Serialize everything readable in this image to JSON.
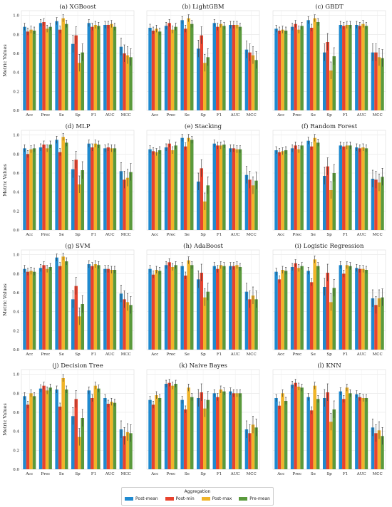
{
  "chart_data": {
    "type": "bar",
    "ylabel": "Metric Values",
    "yticks": [
      "0.0",
      "0.2",
      "0.4",
      "0.6",
      "0.8",
      "1.0"
    ],
    "ylim": [
      0,
      1.05
    ],
    "grid": true,
    "legend": {
      "title": "Aggregation",
      "placement": "bottom-center",
      "entries": [
        "Post-mean",
        "Post-min",
        "Post-max",
        "Pre-mean"
      ]
    },
    "categories": [
      "Acc",
      "Prec",
      "Se",
      "Sp",
      "F1",
      "AUC",
      "MCC"
    ],
    "colors": [
      "#1f8ad0",
      "#e8432e",
      "#f0b429",
      "#5a9a3c"
    ],
    "panels": [
      {
        "title": "(a) XGBoost",
        "series": [
          {
            "name": "Post-mean",
            "values": [
              0.88,
              0.92,
              0.94,
              0.7,
              0.92,
              0.9,
              0.67
            ]
          },
          {
            "name": "Post-min",
            "values": [
              0.83,
              0.93,
              0.85,
              0.79,
              0.88,
              0.9,
              0.6
            ]
          },
          {
            "name": "Post-max",
            "values": [
              0.85,
              0.86,
              0.97,
              0.5,
              0.9,
              0.91,
              0.58
            ]
          },
          {
            "name": "Pre-mean",
            "values": [
              0.84,
              0.88,
              0.91,
              0.61,
              0.89,
              0.88,
              0.56
            ]
          }
        ]
      },
      {
        "title": "(b) LightGBM",
        "series": [
          {
            "name": "Post-mean",
            "values": [
              0.87,
              0.89,
              0.95,
              0.65,
              0.92,
              0.9,
              0.64
            ]
          },
          {
            "name": "Post-min",
            "values": [
              0.84,
              0.92,
              0.86,
              0.79,
              0.88,
              0.9,
              0.61
            ]
          },
          {
            "name": "Post-max",
            "values": [
              0.86,
              0.85,
              0.97,
              0.5,
              0.91,
              0.9,
              0.58
            ]
          },
          {
            "name": "Pre-mean",
            "values": [
              0.83,
              0.88,
              0.91,
              0.56,
              0.89,
              0.88,
              0.53
            ]
          }
        ]
      },
      {
        "title": "(c) GBDT",
        "series": [
          {
            "name": "Post-mean",
            "values": [
              0.86,
              0.88,
              0.95,
              0.61,
              0.9,
              0.9,
              0.61
            ]
          },
          {
            "name": "Post-min",
            "values": [
              0.84,
              0.91,
              0.87,
              0.72,
              0.89,
              0.89,
              0.61
            ]
          },
          {
            "name": "Post-max",
            "values": [
              0.85,
              0.85,
              0.97,
              0.42,
              0.9,
              0.91,
              0.56
            ]
          },
          {
            "name": "Pre-mean",
            "values": [
              0.84,
              0.89,
              0.93,
              0.57,
              0.9,
              0.89,
              0.55
            ]
          }
        ]
      },
      {
        "title": "(d) MLP",
        "series": [
          {
            "name": "Post-mean",
            "values": [
              0.86,
              0.87,
              0.95,
              0.64,
              0.91,
              0.86,
              0.62
            ]
          },
          {
            "name": "Post-min",
            "values": [
              0.8,
              0.9,
              0.82,
              0.74,
              0.87,
              0.87,
              0.53
            ]
          },
          {
            "name": "Post-max",
            "values": [
              0.85,
              0.86,
              0.98,
              0.48,
              0.91,
              0.86,
              0.55
            ]
          },
          {
            "name": "Pre-mean",
            "values": [
              0.86,
              0.9,
              0.92,
              0.63,
              0.9,
              0.86,
              0.61
            ]
          }
        ]
      },
      {
        "title": "(e) Stacking",
        "series": [
          {
            "name": "Post-mean",
            "values": [
              0.85,
              0.87,
              0.97,
              0.51,
              0.91,
              0.86,
              0.58
            ]
          },
          {
            "name": "Post-min",
            "values": [
              0.83,
              0.91,
              0.88,
              0.65,
              0.89,
              0.86,
              0.53
            ]
          },
          {
            "name": "Post-max",
            "values": [
              0.82,
              0.84,
              0.97,
              0.3,
              0.89,
              0.85,
              0.47
            ]
          },
          {
            "name": "Pre-mean",
            "values": [
              0.84,
              0.89,
              0.95,
              0.47,
              0.9,
              0.85,
              0.52
            ]
          }
        ]
      },
      {
        "title": "(f) Random Forest",
        "series": [
          {
            "name": "Post-mean",
            "values": [
              0.84,
              0.86,
              0.94,
              0.57,
              0.89,
              0.87,
              0.54
            ]
          },
          {
            "name": "Post-min",
            "values": [
              0.82,
              0.89,
              0.88,
              0.67,
              0.88,
              0.86,
              0.53
            ]
          },
          {
            "name": "Post-max",
            "values": [
              0.83,
              0.85,
              0.97,
              0.42,
              0.89,
              0.87,
              0.5
            ]
          },
          {
            "name": "Pre-mean",
            "values": [
              0.84,
              0.89,
              0.92,
              0.6,
              0.89,
              0.86,
              0.56
            ]
          }
        ]
      },
      {
        "title": "(g) SVM",
        "series": [
          {
            "name": "Post-mean",
            "values": [
              0.85,
              0.86,
              0.97,
              0.53,
              0.9,
              0.85,
              0.59
            ]
          },
          {
            "name": "Post-min",
            "values": [
              0.82,
              0.89,
              0.88,
              0.67,
              0.88,
              0.85,
              0.53
            ]
          },
          {
            "name": "Post-max",
            "values": [
              0.83,
              0.85,
              0.98,
              0.35,
              0.9,
              0.84,
              0.5
            ]
          },
          {
            "name": "Pre-mean",
            "values": [
              0.82,
              0.87,
              0.93,
              0.48,
              0.89,
              0.84,
              0.47
            ]
          }
        ]
      },
      {
        "title": "(h) AdaBoost",
        "series": [
          {
            "name": "Post-mean",
            "values": [
              0.85,
              0.89,
              0.88,
              0.74,
              0.88,
              0.88,
              0.61
            ]
          },
          {
            "name": "Post-min",
            "values": [
              0.79,
              0.92,
              0.78,
              0.81,
              0.85,
              0.88,
              0.53
            ]
          },
          {
            "name": "Post-max",
            "values": [
              0.84,
              0.87,
              0.94,
              0.55,
              0.89,
              0.89,
              0.57
            ]
          },
          {
            "name": "Pre-mean",
            "values": [
              0.83,
              0.89,
              0.89,
              0.61,
              0.88,
              0.87,
              0.53
            ]
          }
        ]
      },
      {
        "title": "(i) Logistic Regression",
        "series": [
          {
            "name": "Post-mean",
            "values": [
              0.82,
              0.87,
              0.83,
              0.66,
              0.89,
              0.86,
              0.54
            ]
          },
          {
            "name": "Post-min",
            "values": [
              0.74,
              0.91,
              0.71,
              0.81,
              0.8,
              0.85,
              0.47
            ]
          },
          {
            "name": "Post-max",
            "values": [
              0.84,
              0.86,
              0.95,
              0.5,
              0.89,
              0.85,
              0.54
            ]
          },
          {
            "name": "Pre-mean",
            "values": [
              0.83,
              0.88,
              0.88,
              0.65,
              0.88,
              0.84,
              0.55
            ]
          }
        ]
      },
      {
        "title": "(j) Decision Tree",
        "series": [
          {
            "name": "Post-mean",
            "values": [
              0.77,
              0.85,
              0.84,
              0.56,
              0.83,
              0.75,
              0.42
            ]
          },
          {
            "name": "Post-min",
            "values": [
              0.68,
              0.88,
              0.66,
              0.74,
              0.75,
              0.69,
              0.35
            ]
          },
          {
            "name": "Post-max",
            "values": [
              0.8,
              0.83,
              0.96,
              0.34,
              0.88,
              0.71,
              0.39
            ]
          },
          {
            "name": "Pre-mean",
            "values": [
              0.77,
              0.86,
              0.84,
              0.54,
              0.85,
              0.7,
              0.38
            ]
          }
        ]
      },
      {
        "title": "(k) Naive Bayes",
        "series": [
          {
            "name": "Post-mean",
            "values": [
              0.73,
              0.9,
              0.73,
              0.75,
              0.8,
              0.82,
              0.42
            ]
          },
          {
            "name": "Post-min",
            "values": [
              0.68,
              0.91,
              0.63,
              0.81,
              0.76,
              0.8,
              0.38
            ]
          },
          {
            "name": "Post-max",
            "values": [
              0.78,
              0.88,
              0.86,
              0.64,
              0.84,
              0.8,
              0.47
            ]
          },
          {
            "name": "Pre-mean",
            "values": [
              0.75,
              0.9,
              0.76,
              0.73,
              0.82,
              0.8,
              0.44
            ]
          }
        ]
      },
      {
        "title": "(l) KNN",
        "series": [
          {
            "name": "Post-mean",
            "values": [
              0.75,
              0.89,
              0.76,
              0.75,
              0.82,
              0.79,
              0.44
            ]
          },
          {
            "name": "Post-min",
            "values": [
              0.67,
              0.91,
              0.62,
              0.81,
              0.74,
              0.76,
              0.38
            ]
          },
          {
            "name": "Post-max",
            "values": [
              0.8,
              0.87,
              0.88,
              0.5,
              0.86,
              0.75,
              0.41
            ]
          },
          {
            "name": "Pre-mean",
            "values": [
              0.72,
              0.86,
              0.74,
              0.63,
              0.8,
              0.75,
              0.35
            ]
          }
        ]
      }
    ]
  }
}
